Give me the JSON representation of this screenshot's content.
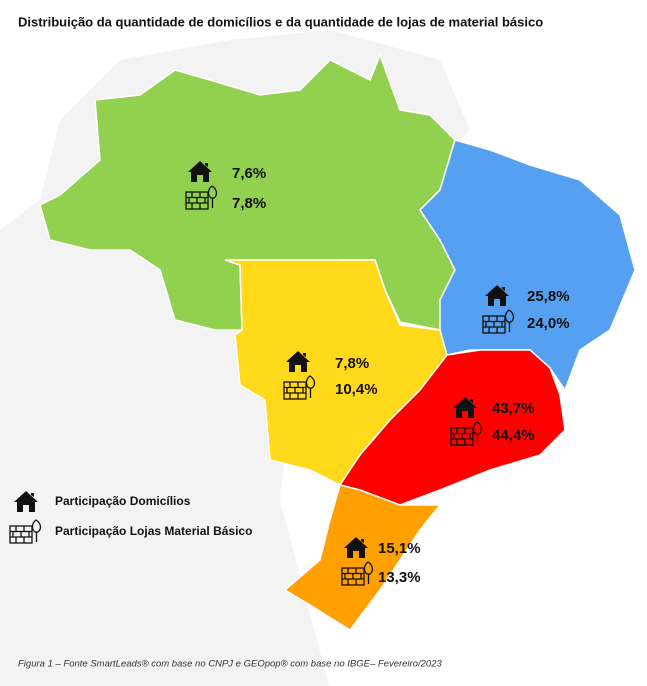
{
  "title": "Distribuição da quantidade de domicílios e da quantidade de lojas de material básico",
  "regions": [
    {
      "households": "7,6%",
      "stores": "7,8%",
      "color": "#92d050"
    },
    {
      "households": "7,8%",
      "stores": "10,4%",
      "color": "#ffd91a"
    },
    {
      "households": "25,8%",
      "stores": "24,0%",
      "color": "#55a0f0"
    },
    {
      "households": "43,7%",
      "stores": "44,4%",
      "color": "#ff0000"
    },
    {
      "households": "15,1%",
      "stores": "13,3%",
      "color": "#ffa000"
    }
  ],
  "legend": {
    "households": "Participação Domicílios",
    "stores": "Participação Lojas Material Básico"
  },
  "caption": "Figura 1 – Fonte SmartLeads® com base no CNPJ e GEOpop® com base no IBGE– Fevereiro/2023"
}
